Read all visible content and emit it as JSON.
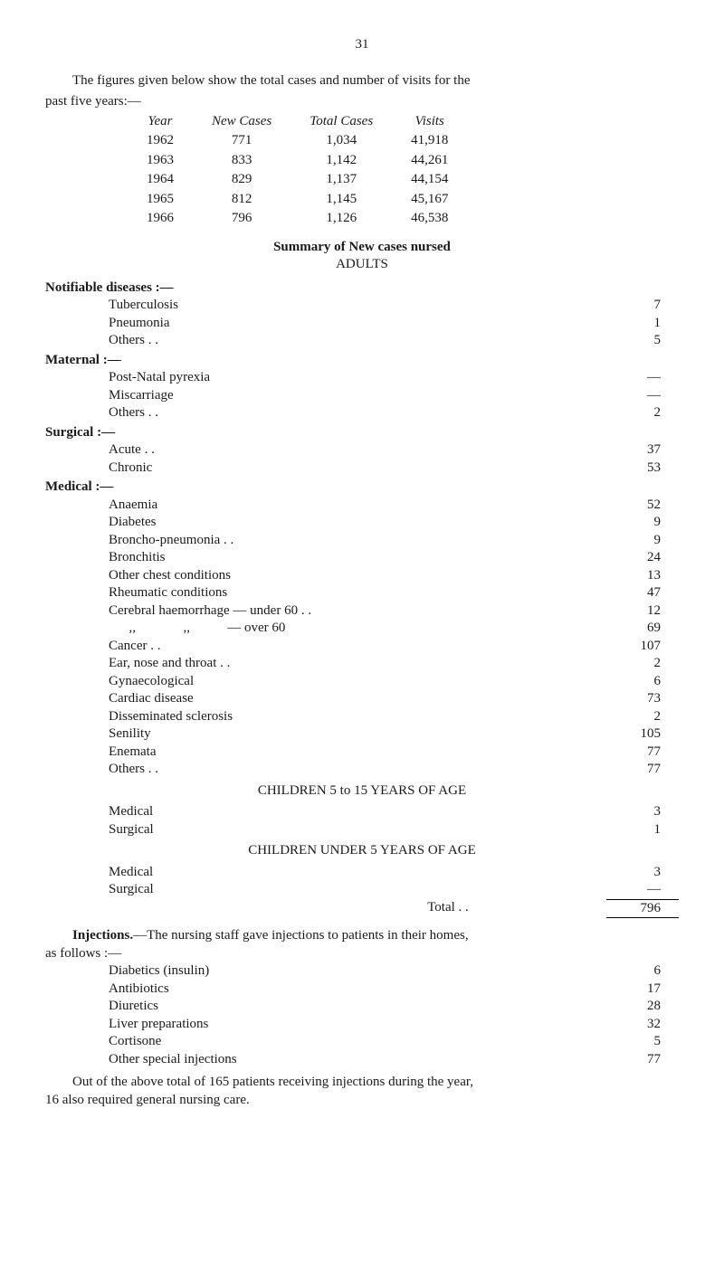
{
  "pageNumber": "31",
  "intro1": "The figures given below show the total cases and number of visits for the",
  "intro2": "past five years:—",
  "yearsHeader": {
    "c1": "Year",
    "c2": "New Cases",
    "c3": "Total Cases",
    "c4": "Visits"
  },
  "years": [
    {
      "c1": "1962",
      "c2": "771",
      "c3": "1,034",
      "c4": "41,918"
    },
    {
      "c1": "1963",
      "c2": "833",
      "c3": "1,142",
      "c4": "44,261"
    },
    {
      "c1": "1964",
      "c2": "829",
      "c3": "1,137",
      "c4": "44,154"
    },
    {
      "c1": "1965",
      "c2": "812",
      "c3": "1,145",
      "c4": "45,167"
    },
    {
      "c1": "1966",
      "c2": "796",
      "c3": "1,126",
      "c4": "46,538"
    }
  ],
  "summaryTitle": "Summary of New cases nursed",
  "adults": "ADULTS",
  "sections": {
    "notifiable": {
      "hdr": "Notifiable diseases :—",
      "rows": [
        {
          "label": "Tuberculosis",
          "val": "7"
        },
        {
          "label": "Pneumonia",
          "val": "1"
        },
        {
          "label": "Others . .",
          "val": "5"
        }
      ]
    },
    "maternal": {
      "hdr": "Maternal :—",
      "rows": [
        {
          "label": "Post-Natal pyrexia",
          "val": "—"
        },
        {
          "label": "Miscarriage",
          "val": "—"
        },
        {
          "label": "Others . .",
          "val": "2"
        }
      ]
    },
    "surgical": {
      "hdr": "Surgical :—",
      "rows": [
        {
          "label": "Acute . .",
          "val": "37"
        },
        {
          "label": "Chronic",
          "val": "53"
        }
      ]
    },
    "medical": {
      "hdr": "Medical :—",
      "rows": [
        {
          "label": "Anaemia",
          "val": "52"
        },
        {
          "label": "Diabetes",
          "val": "9"
        },
        {
          "label": "Broncho-pneumonia . .",
          "val": "9"
        },
        {
          "label": "Bronchitis",
          "val": "24"
        },
        {
          "label": "Other chest conditions",
          "val": "13"
        },
        {
          "label": "Rheumatic conditions",
          "val": "47"
        },
        {
          "label": "Cerebral haemorrhage — under 60 . .",
          "val": "12"
        },
        {
          "label": "      ,,              ,,           — over 60",
          "val": "69"
        },
        {
          "label": "Cancer . .",
          "val": "107"
        },
        {
          "label": "Ear, nose and throat . .",
          "val": "2"
        },
        {
          "label": "Gynaecological",
          "val": "6"
        },
        {
          "label": "Cardiac disease",
          "val": "73"
        },
        {
          "label": "Disseminated sclerosis",
          "val": "2"
        },
        {
          "label": "Senility",
          "val": "105"
        },
        {
          "label": "Enemata",
          "val": "77"
        },
        {
          "label": "Others . .",
          "val": "77"
        }
      ]
    }
  },
  "children515": {
    "title": "CHILDREN 5 to 15 YEARS OF AGE",
    "rows": [
      {
        "label": "Medical",
        "val": "3"
      },
      {
        "label": "Surgical",
        "val": "1"
      }
    ]
  },
  "childrenU5": {
    "title": "CHILDREN UNDER 5 YEARS OF AGE",
    "rows": [
      {
        "label": "Medical",
        "val": "3"
      },
      {
        "label": "Surgical",
        "val": "—"
      }
    ]
  },
  "total": {
    "label": "Total   . .",
    "val": "796"
  },
  "injections": {
    "introBold": "Injections.",
    "introRest": "—The nursing staff gave injections to patients in their homes,",
    "intro2": "as follows :—",
    "rows": [
      {
        "label": "Diabetics (insulin)",
        "val": "6"
      },
      {
        "label": "Antibiotics",
        "val": "17"
      },
      {
        "label": "Diuretics",
        "val": "28"
      },
      {
        "label": "Liver preparations",
        "val": "32"
      },
      {
        "label": "Cortisone",
        "val": "5"
      },
      {
        "label": "Other special injections",
        "val": "77"
      }
    ]
  },
  "closing1": "Out of the above total of 165 patients receiving injections during the year,",
  "closing2": "16 also required general nursing care."
}
